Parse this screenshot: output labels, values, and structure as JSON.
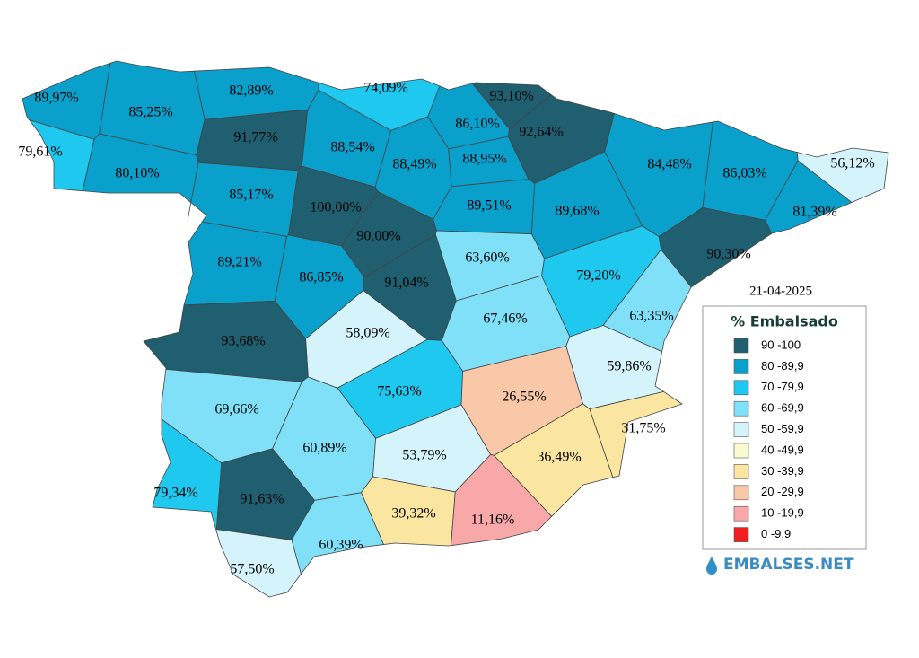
{
  "map": {
    "date": "21-04-2025",
    "regions": [
      {
        "label": "89,97%",
        "color": "#0aa0cc"
      },
      {
        "label": "85,25%",
        "color": "#0aa0cc"
      },
      {
        "label": "82,89%",
        "color": "#0aa0cc"
      },
      {
        "label": "74,09%",
        "color": "#1ec8ef"
      },
      {
        "label": "93,10%",
        "color": "#1f5f6f"
      },
      {
        "label": "79,61%",
        "color": "#1ec8ef"
      },
      {
        "label": "91,77%",
        "color": "#1f5f6f"
      },
      {
        "label": "86,10%",
        "color": "#0aa0cc"
      },
      {
        "label": "92,64%",
        "color": "#1f5f6f"
      },
      {
        "label": "88,54%",
        "color": "#0aa0cc"
      },
      {
        "label": "80,10%",
        "color": "#0aa0cc"
      },
      {
        "label": "88,49%",
        "color": "#0aa0cc"
      },
      {
        "label": "88,95%",
        "color": "#0aa0cc"
      },
      {
        "label": "84,48%",
        "color": "#0aa0cc"
      },
      {
        "label": "86,03%",
        "color": "#0aa0cc"
      },
      {
        "label": "56,12%",
        "color": "#d5f3fb"
      },
      {
        "label": "85,17%",
        "color": "#0aa0cc"
      },
      {
        "label": "100,00%",
        "color": "#1f5f6f"
      },
      {
        "label": "89,51%",
        "color": "#0aa0cc"
      },
      {
        "label": "89,68%",
        "color": "#0aa0cc"
      },
      {
        "label": "81,39%",
        "color": "#0aa0cc"
      },
      {
        "label": "90,00%",
        "color": "#1f5f6f"
      },
      {
        "label": "90,30%",
        "color": "#1f5f6f"
      },
      {
        "label": "89,21%",
        "color": "#0aa0cc"
      },
      {
        "label": "63,60%",
        "color": "#7fe0f8"
      },
      {
        "label": "86,85%",
        "color": "#0aa0cc"
      },
      {
        "label": "91,04%",
        "color": "#1f5f6f"
      },
      {
        "label": "79,20%",
        "color": "#1ec8ef"
      },
      {
        "label": "63,35%",
        "color": "#7fe0f8"
      },
      {
        "label": "67,46%",
        "color": "#7fe0f8"
      },
      {
        "label": "58,09%",
        "color": "#d5f3fb"
      },
      {
        "label": "93,68%",
        "color": "#1f5f6f"
      },
      {
        "label": "59,86%",
        "color": "#d5f3fb"
      },
      {
        "label": "75,63%",
        "color": "#1ec8ef"
      },
      {
        "label": "26,55%",
        "color": "#f8c8a8"
      },
      {
        "label": "69,66%",
        "color": "#7fe0f8"
      },
      {
        "label": "31,75%",
        "color": "#fae6a0"
      },
      {
        "label": "60,89%",
        "color": "#7fe0f8"
      },
      {
        "label": "53,79%",
        "color": "#d5f3fb"
      },
      {
        "label": "36,49%",
        "color": "#fae6a0"
      },
      {
        "label": "79,34%",
        "color": "#1ec8ef"
      },
      {
        "label": "91,63%",
        "color": "#1f5f6f"
      },
      {
        "label": "39,32%",
        "color": "#fae6a0"
      },
      {
        "label": "11,16%",
        "color": "#f8a8a8"
      },
      {
        "label": "60,39%",
        "color": "#7fe0f8"
      },
      {
        "label": "57,50%",
        "color": "#d5f3fb"
      }
    ],
    "legend": {
      "title": "% Embalsado",
      "items": [
        {
          "label": "90 -100",
          "color": "#1f5f6f"
        },
        {
          "label": "80 -89,9",
          "color": "#0aa0cc"
        },
        {
          "label": "70 -79,9",
          "color": "#1ec8ef"
        },
        {
          "label": "60 -69,9",
          "color": "#7fe0f8"
        },
        {
          "label": "50 -59,9",
          "color": "#d5f3fb"
        },
        {
          "label": "40 -49,9",
          "color": "#fafad0"
        },
        {
          "label": "30 -39,9",
          "color": "#fae6a0"
        },
        {
          "label": "20 -29,9",
          "color": "#f8c8a8"
        },
        {
          "label": "10 -19,9",
          "color": "#f8a8a8"
        },
        {
          "label": "0 -9,9",
          "color": "#f01e1e"
        }
      ]
    },
    "logo": "EMBALSES.NET"
  }
}
